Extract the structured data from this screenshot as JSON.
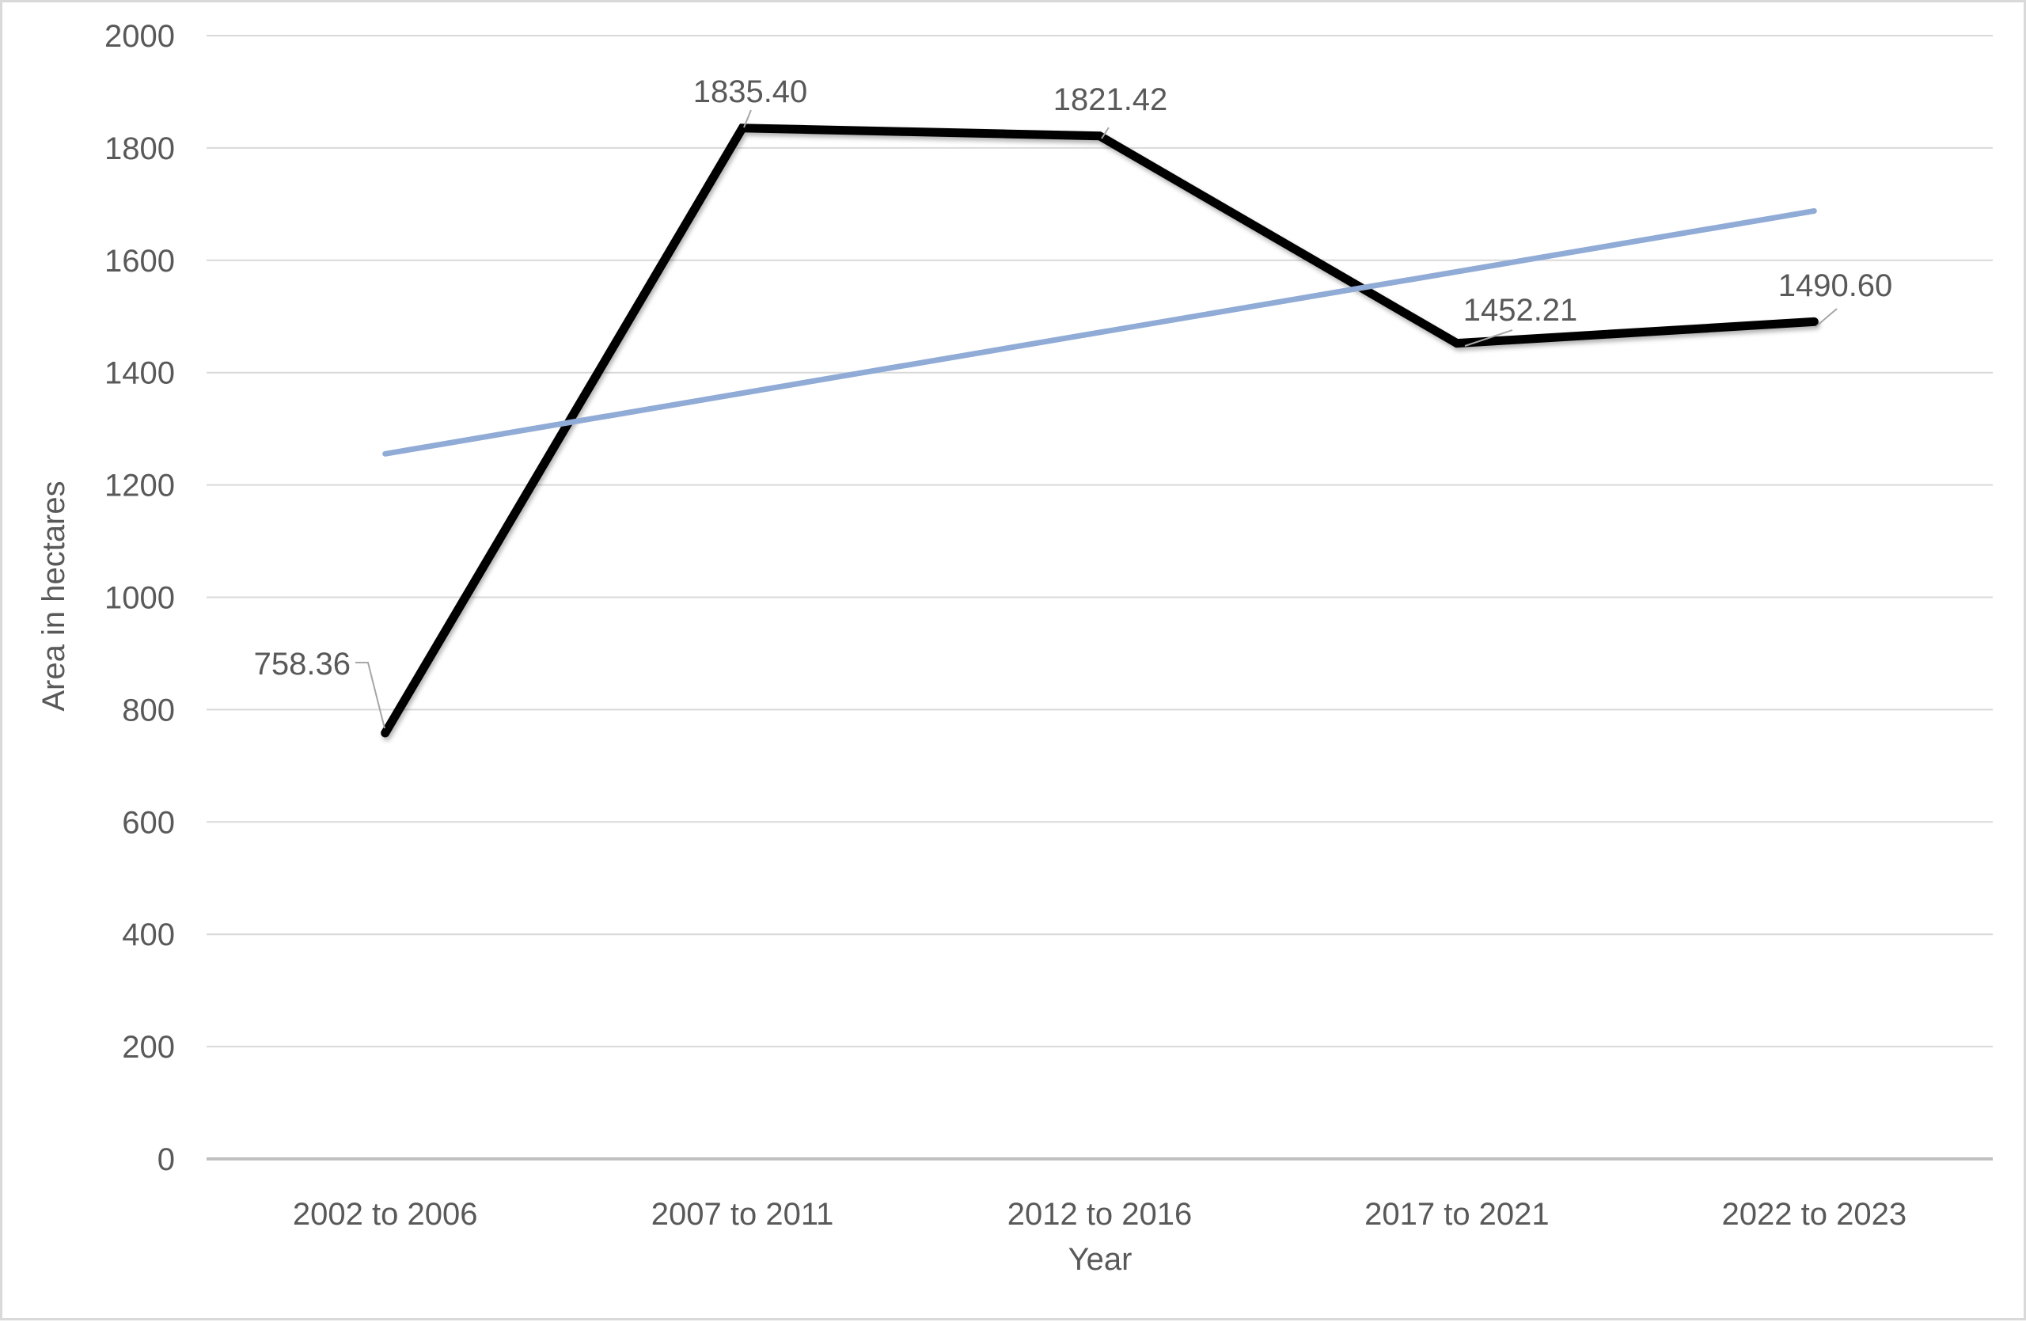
{
  "chart_data": {
    "type": "line",
    "title": "",
    "xlabel": "Year",
    "ylabel": "Area in hectares",
    "categories": [
      "2002 to 2006",
      "2007 to 2011",
      "2012 to 2016",
      "2017 to 2021",
      "2022 to 2023"
    ],
    "series": [
      {
        "name": "Area in hectares",
        "type": "line",
        "color": "#000000",
        "stroke_width": 11,
        "values": [
          758.36,
          1835.4,
          1821.42,
          1452.21,
          1490.6
        ],
        "data_labels": [
          "758.36",
          "1835.40",
          "1821.42",
          "1452.21",
          "1490.60"
        ]
      },
      {
        "name": "linear-trendline",
        "type": "trendline",
        "color": "#8FABD6",
        "stroke_width": 7,
        "endpoint_values": [
          1255.4,
          1687.8
        ]
      }
    ],
    "y_axis": {
      "min": 0,
      "max": 2000,
      "step": 200,
      "tick_labels": [
        "0",
        "200",
        "400",
        "600",
        "800",
        "1000",
        "1200",
        "1400",
        "1600",
        "1800",
        "2000"
      ]
    },
    "grid": true,
    "legend": false,
    "colors": {
      "grid": "#D9D9D9",
      "axis": "#C0C0C0",
      "text": "#595959",
      "leader": "#A6A6A6",
      "border": "#D9D9D9",
      "background": "#FFFFFF"
    }
  }
}
